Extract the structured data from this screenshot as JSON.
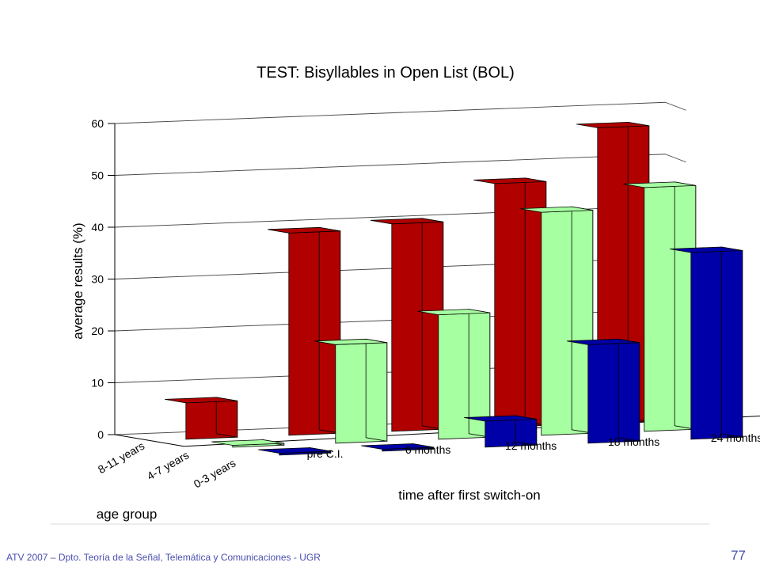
{
  "footer": {
    "text": "ATV 2007 – Dpto. Teoría de la Señal, Telemática y Comunicaciones - UGR",
    "page_number": "77"
  },
  "chart_data": {
    "type": "bar3d",
    "title": "TEST: Bisyllables in Open List (BOL)",
    "ylabel": "average results (%)",
    "xlabel": "time after first switch-on",
    "zlabel": "age group",
    "ylim": [
      0,
      60
    ],
    "yticks": [
      "0",
      "10",
      "20",
      "30",
      "40",
      "50",
      "60"
    ],
    "categories": [
      "pre C.I.",
      "6 months",
      "12 months",
      "18 months",
      "24 months"
    ],
    "grid": true,
    "series": [
      {
        "name": "8-11 years",
        "color": "#b00000",
        "values": [
          7,
          39,
          40,
          47,
          57
        ]
      },
      {
        "name": "4-7 years",
        "color": "#a6ffa0",
        "values": [
          0,
          19,
          24,
          43,
          47
        ]
      },
      {
        "name": "0-3 years",
        "color": "#0000a8",
        "values": [
          0,
          0,
          5,
          19,
          36
        ]
      }
    ]
  }
}
